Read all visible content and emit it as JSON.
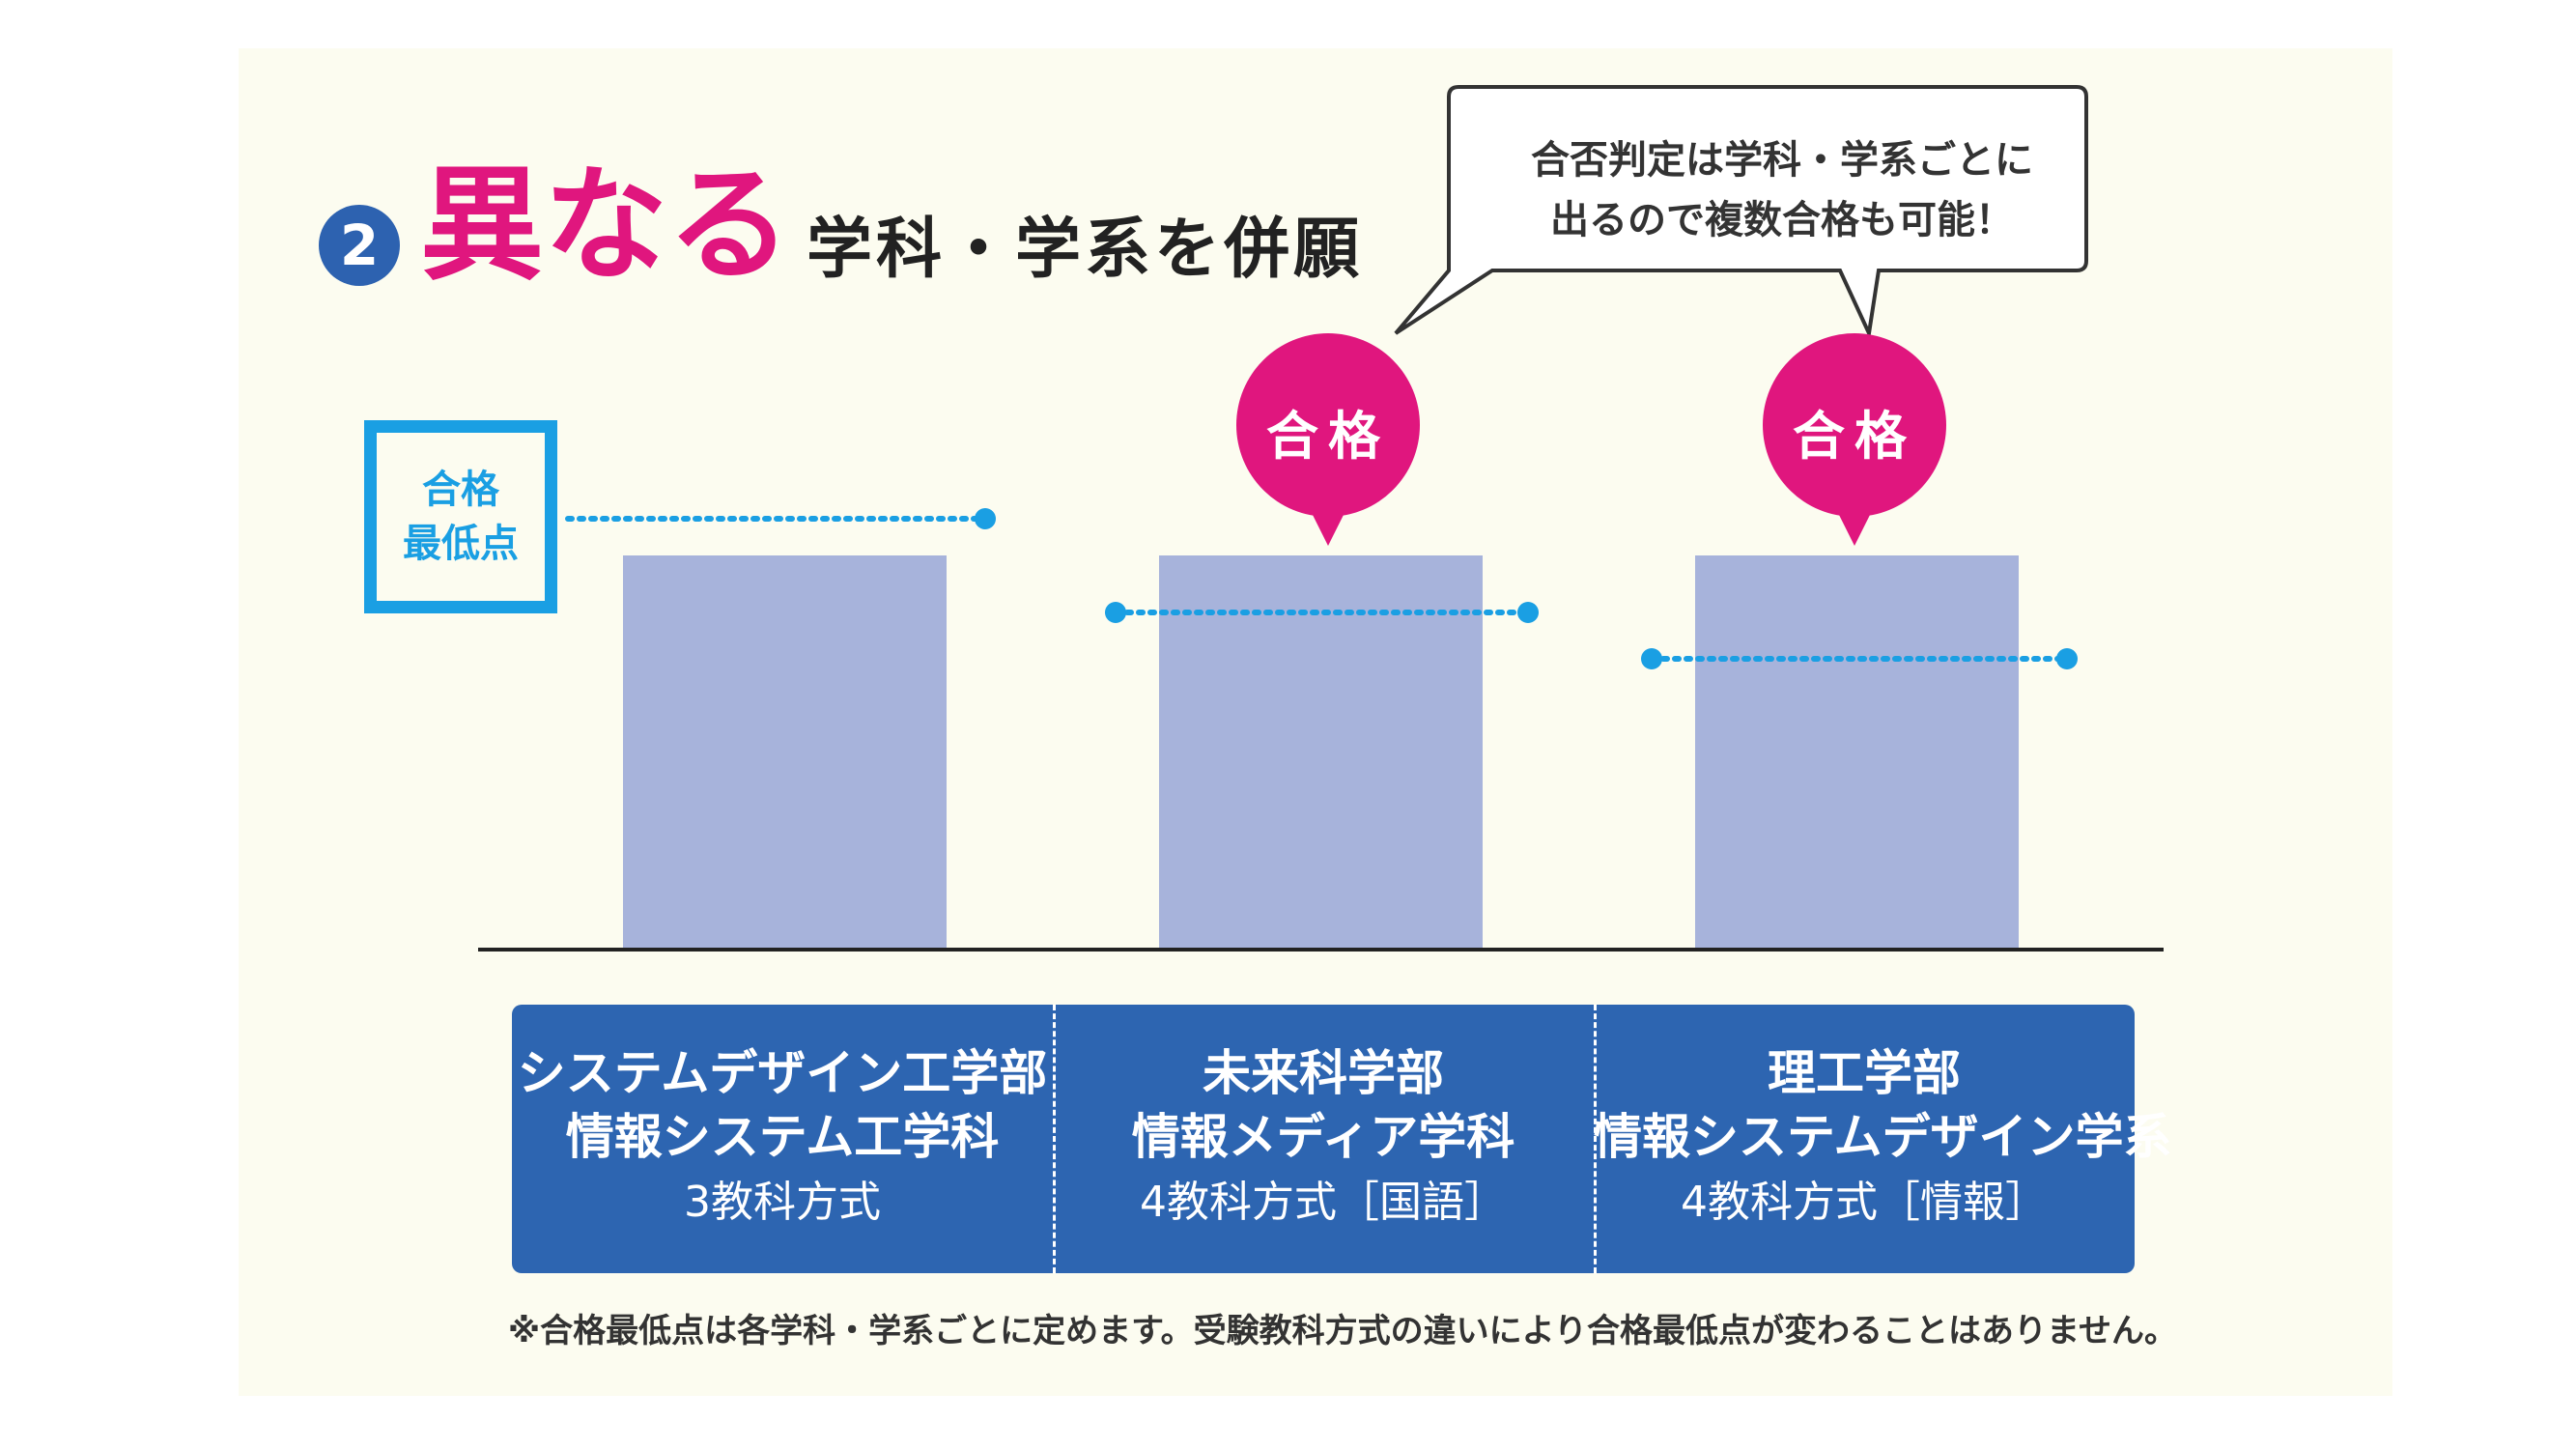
{
  "heading": {
    "number": "2",
    "main": "異なる",
    "sub": "学科・学系を併願"
  },
  "callout": {
    "line1": "合否判定は学科・学系ごとに",
    "line2": "出るので複数合格も可能！"
  },
  "legend": {
    "line1": "合格",
    "line2": "最低点"
  },
  "badges": {
    "pass_1": "合格",
    "pass_2": "合格"
  },
  "columns": [
    {
      "line1": "システムデザイン工学部",
      "line2": "情報システム工学科",
      "line3": "3教科方式"
    },
    {
      "line1": "未来科学部",
      "line2": "情報メディア学科",
      "line3": "4教科方式［国語］"
    },
    {
      "line1": "理工学部",
      "line2": "情報システムデザイン学系",
      "line3": "4教科方式［情報］"
    }
  ],
  "footnote": "※合格最低点は各学科・学系ごとに定めます。受験教科方式の違いにより合格最低点が変わることはありません。",
  "colors": {
    "accent_pink": "#e0167e",
    "accent_blue": "#1a9fe3",
    "label_blue": "#2d65b1",
    "bar": "#a7b3db"
  }
}
